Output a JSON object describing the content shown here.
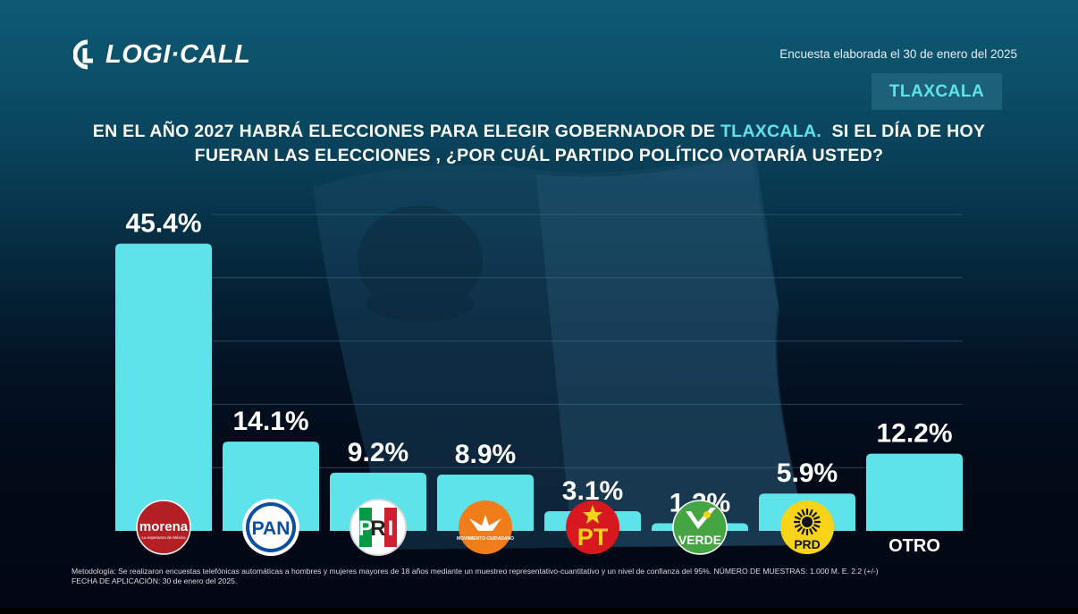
{
  "brand": {
    "name": "LOGI·CALL"
  },
  "survey_date": "Encuesta elaborada el 30 de enero del 2025",
  "state_tag": "TLAXCALA",
  "question": {
    "part1": "EN EL AÑO 2027 HABRÁ ELECCIONES PARA ELEGIR GOBERNADOR DE ",
    "highlight": "TLAXCALA.",
    "part2": "  SI EL DÍA DE HOY",
    "line2": "FUERAN LAS ELECCIONES , ¿POR CUÁL PARTIDO POLÍTICO VOTARÍA USTED?"
  },
  "colors": {
    "bar": "#5fe3ea",
    "accent": "#5fe3ea",
    "morena": "#b41f24",
    "pan": "#0b4ea2",
    "pri_green": "#009a44",
    "pri_red": "#d0202f",
    "mc": "#f07d1a",
    "pt": "#d7191f",
    "verde": "#45a542",
    "prd": "#f7d417"
  },
  "chart_data": {
    "type": "bar",
    "categories": [
      "MORENA",
      "PAN",
      "PRI",
      "MC",
      "PT",
      "VERDE",
      "PRD",
      "OTRO"
    ],
    "values": [
      45.4,
      14.1,
      9.2,
      8.9,
      3.1,
      1.2,
      5.9,
      12.2
    ],
    "value_labels": [
      "45.4%",
      "14.1%",
      "9.2%",
      "8.9%",
      "3.1%",
      "1.2%",
      "5.9%",
      "12.2%"
    ],
    "category_labels": [
      "",
      "",
      "",
      "",
      "",
      "",
      "",
      "OTRO"
    ],
    "logos": [
      "morena-logo",
      "pan-logo",
      "pri-logo",
      "movimiento-ciudadano-logo",
      "pt-logo",
      "verde-logo",
      "prd-logo",
      ""
    ],
    "logo_text": {
      "morena": "morena",
      "morena_sub": "La esperanza de México",
      "pan": "PAN",
      "pri": [
        "P",
        "R",
        "I"
      ],
      "mc": "MOVIMIENTO CIUDADANO",
      "pt": "PT",
      "verde": "VERDE",
      "prd": "PRD"
    },
    "ylim": [
      0,
      50
    ],
    "grid": true,
    "legend": "none"
  },
  "methodology": {
    "line1": "Metodología: Se realizaron encuestas telefónicas automáticas a hombres y mujeres mayores de 18 años mediante un muestreo representativo-cuantitativo y un nivel de confianza del 95%. NÚMERO DE MUESTRAS: 1.000 M. E. 2.2 (+/-)",
    "line2": "FECHA DE APLICACIÓN: 30 de enero del 2025."
  }
}
